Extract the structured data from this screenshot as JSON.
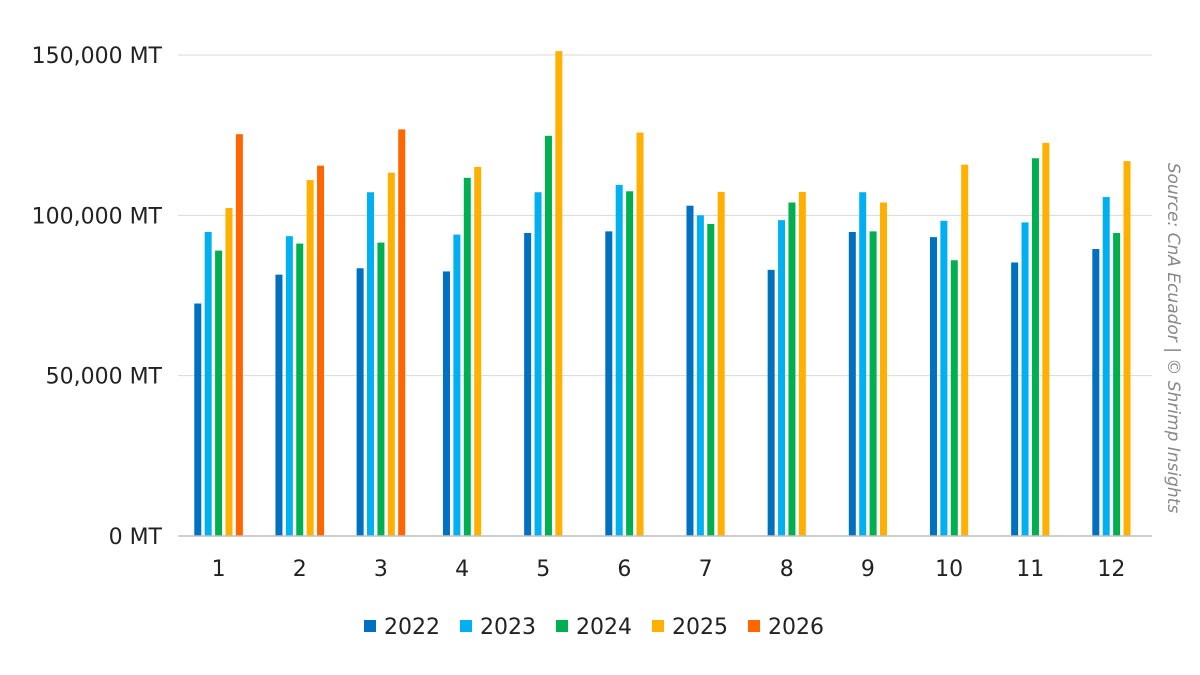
{
  "source_note": "Source: CnA Ecuador | © Shrimp Insights",
  "chart_data": {
    "type": "bar",
    "categories": [
      "1",
      "2",
      "3",
      "4",
      "5",
      "6",
      "7",
      "8",
      "9",
      "10",
      "11",
      "12"
    ],
    "y_unit": "MT",
    "ylim": [
      0,
      150000
    ],
    "yticks": [
      0,
      50000,
      100000,
      150000
    ],
    "ytick_labels": [
      "0 MT",
      "50,000 MT",
      "100,000 MT",
      "150,000 MT"
    ],
    "grid": true,
    "legend_position": "bottom",
    "title": "",
    "xlabel": "",
    "ylabel": "",
    "series": [
      {
        "name": "2022",
        "color": "#0070C0",
        "values": [
          72500,
          81500,
          83500,
          82500,
          94500,
          95000,
          103000,
          83000,
          94800,
          93200,
          85300,
          89500
        ]
      },
      {
        "name": "2023",
        "color": "#00B0F0",
        "values": [
          94800,
          93500,
          107200,
          94000,
          107200,
          109500,
          100000,
          98500,
          107200,
          98300,
          97800,
          105700
        ]
      },
      {
        "name": "2024",
        "color": "#00B050",
        "values": [
          89000,
          91200,
          91500,
          111700,
          124800,
          107500,
          97300,
          104000,
          95000,
          86000,
          117800,
          94500
        ]
      },
      {
        "name": "2025",
        "color": "#FFB000",
        "values": [
          102300,
          111000,
          113300,
          115100,
          151200,
          125800,
          107300,
          107300,
          104000,
          115800,
          122600,
          116900
        ]
      },
      {
        "name": "2026",
        "color": "#FF6600",
        "values": [
          125300,
          115500,
          126800,
          null,
          null,
          null,
          null,
          null,
          null,
          null,
          null,
          null
        ]
      }
    ]
  }
}
